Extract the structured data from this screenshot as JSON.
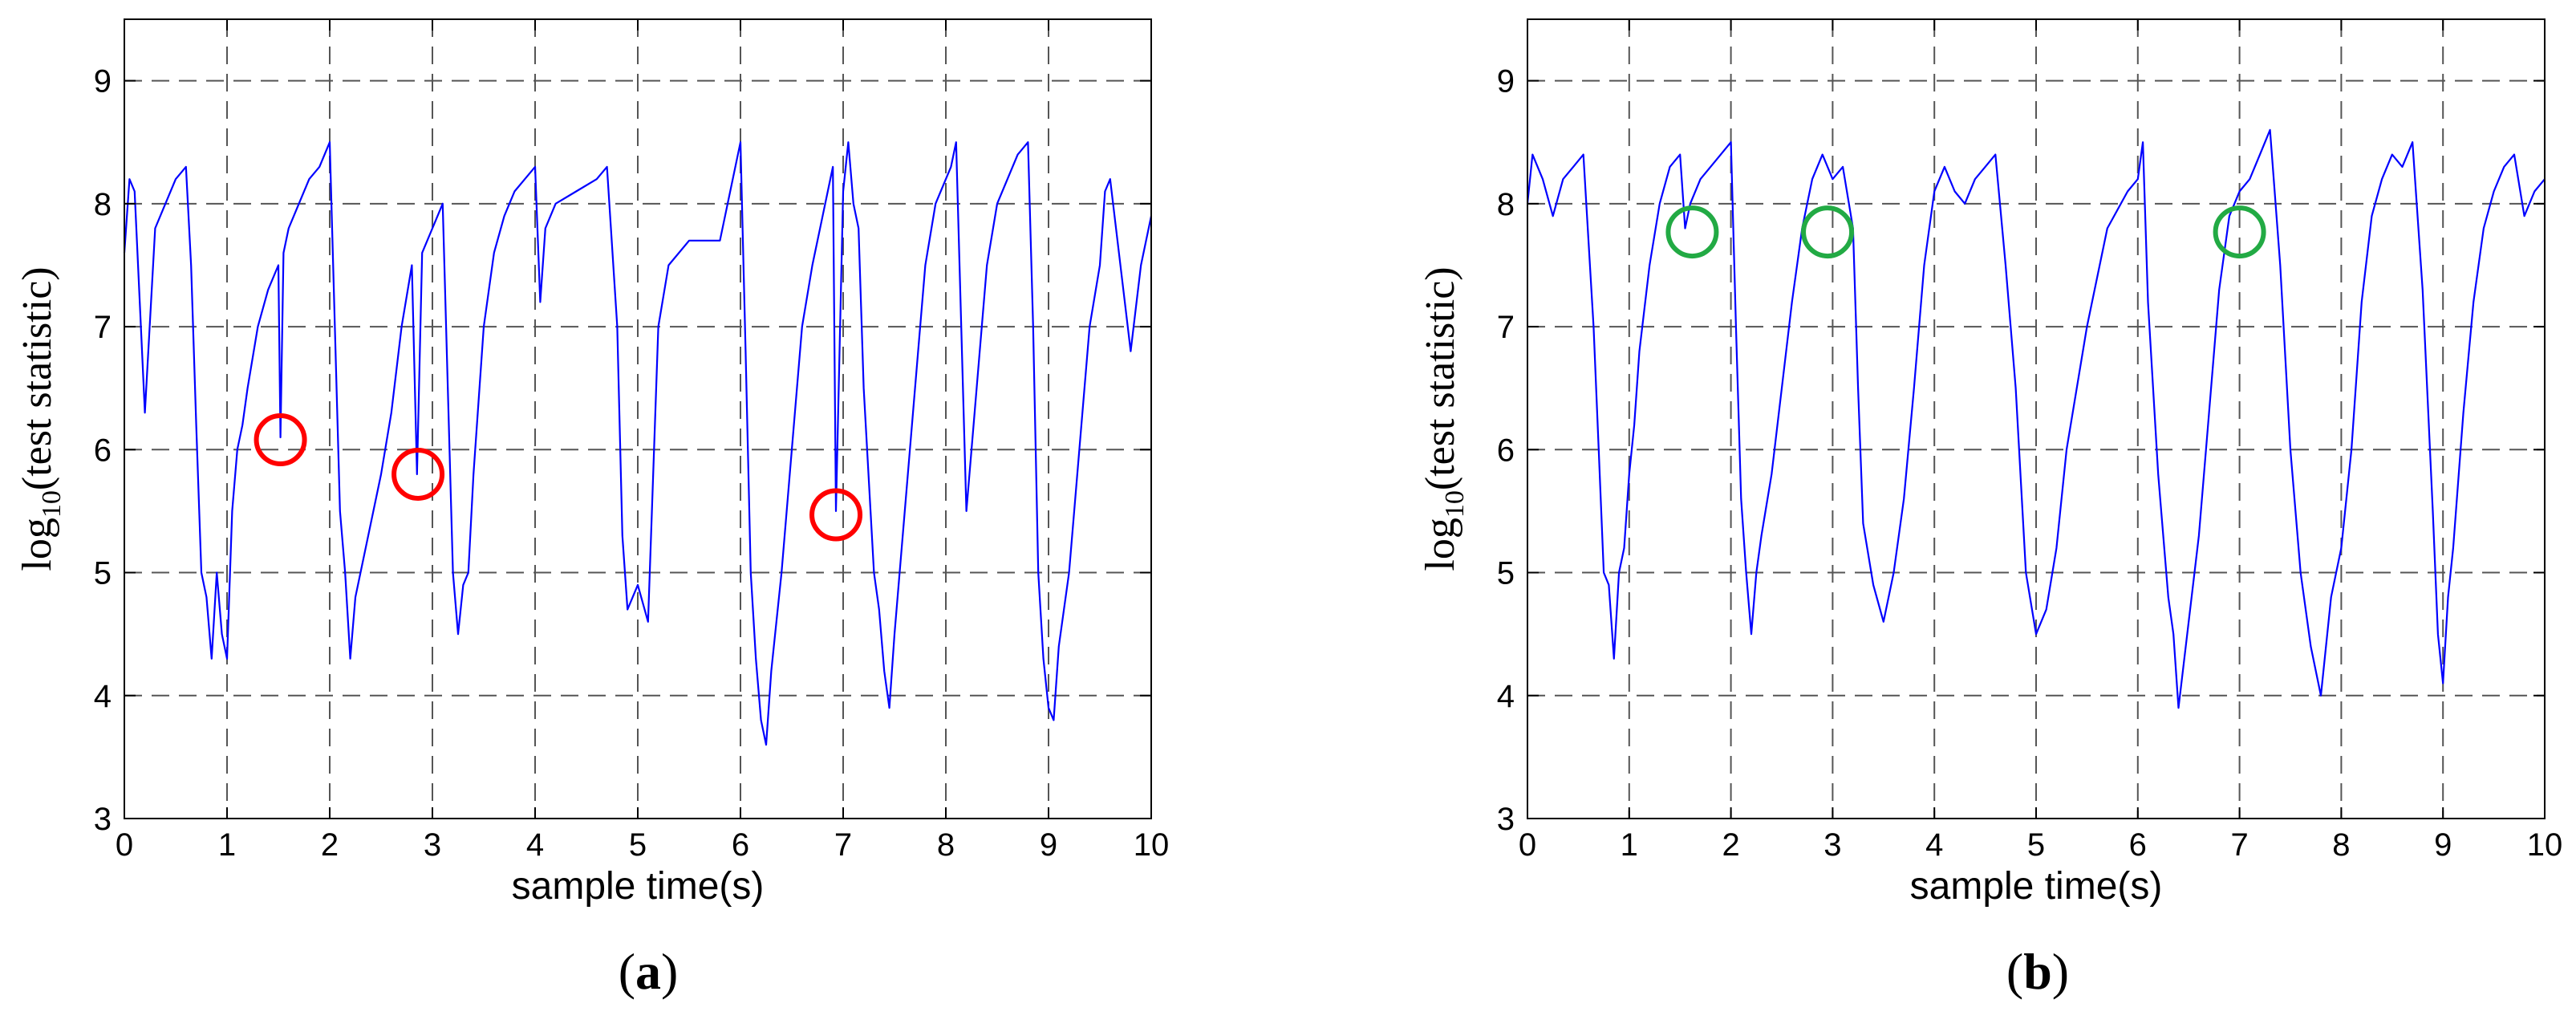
{
  "chart_data": [
    {
      "type": "line",
      "panel_label": {
        "open": "(",
        "letter": "a",
        "close": ")"
      },
      "xlabel": "sample time(s)",
      "ylabel": {
        "prefix": "log",
        "sub": "10",
        "suffix": "(test  statistic)"
      },
      "xlim": [
        0,
        10
      ],
      "ylim": [
        3,
        9.5
      ],
      "xticks": [
        0,
        1,
        2,
        3,
        4,
        5,
        6,
        7,
        8,
        9,
        10
      ],
      "yticks": [
        3,
        4,
        5,
        6,
        7,
        8,
        9
      ],
      "grid": true,
      "series_color": "#0000ff",
      "marker_color": "#ff0000",
      "series": [
        {
          "x": [
            0.0,
            0.05,
            0.1,
            0.15,
            0.2,
            0.3,
            0.4,
            0.5,
            0.6,
            0.65,
            0.7,
            0.75,
            0.8,
            0.85,
            0.9,
            0.95,
            1.0,
            1.05,
            1.1,
            1.15,
            1.2,
            1.3,
            1.4,
            1.5,
            1.52,
            1.55,
            1.6,
            1.7,
            1.8,
            1.9,
            2.0,
            2.05,
            2.1,
            2.15,
            2.2,
            2.25,
            2.3,
            2.4,
            2.5,
            2.6,
            2.7,
            2.8,
            2.85,
            2.9,
            3.0,
            3.05,
            3.1,
            3.15,
            3.2,
            3.25,
            3.3,
            3.35,
            3.4,
            3.5,
            3.6,
            3.7,
            3.8,
            3.9,
            4.0,
            4.05,
            4.1,
            4.2,
            4.4,
            4.6,
            4.7,
            4.8,
            4.85,
            4.9,
            5.0,
            5.1,
            5.15,
            5.2,
            5.3,
            5.5,
            5.7,
            5.8,
            6.0,
            6.05,
            6.1,
            6.15,
            6.2,
            6.25,
            6.3,
            6.35,
            6.4,
            6.5,
            6.6,
            6.7,
            6.8,
            6.9,
            6.93,
            7.0,
            7.05,
            7.1,
            7.15,
            7.2,
            7.3,
            7.35,
            7.4,
            7.45,
            7.5,
            7.6,
            7.7,
            7.8,
            7.9,
            8.0,
            8.05,
            8.1,
            8.15,
            8.2,
            8.3,
            8.4,
            8.5,
            8.6,
            8.7,
            8.8,
            8.85,
            8.9,
            8.95,
            9.0,
            9.05,
            9.1,
            9.2,
            9.3,
            9.4,
            9.5,
            9.55,
            9.6,
            9.7,
            9.8,
            9.9,
            10.0
          ],
          "y": [
            7.6,
            8.2,
            8.1,
            7.2,
            6.3,
            7.8,
            8.0,
            8.2,
            8.3,
            7.5,
            6.2,
            5.0,
            4.8,
            4.3,
            5.0,
            4.5,
            4.3,
            5.5,
            6.0,
            6.2,
            6.5,
            7.0,
            7.3,
            7.5,
            6.1,
            7.6,
            7.8,
            8.0,
            8.2,
            8.3,
            8.5,
            7.0,
            5.5,
            5.0,
            4.3,
            4.8,
            5.0,
            5.4,
            5.8,
            6.3,
            7.0,
            7.5,
            5.8,
            7.6,
            7.8,
            7.9,
            8.0,
            6.5,
            5.0,
            4.5,
            4.9,
            5.0,
            5.8,
            7.0,
            7.6,
            7.9,
            8.1,
            8.2,
            8.3,
            7.2,
            7.8,
            8.0,
            8.1,
            8.2,
            8.3,
            7.0,
            5.3,
            4.7,
            4.9,
            4.6,
            5.8,
            7.0,
            7.5,
            7.7,
            7.7,
            7.7,
            8.5,
            6.8,
            5.0,
            4.3,
            3.8,
            3.6,
            4.2,
            4.6,
            5.0,
            6.0,
            7.0,
            7.5,
            7.9,
            8.3,
            5.5,
            8.1,
            8.5,
            8.0,
            7.8,
            6.5,
            5.0,
            4.7,
            4.2,
            3.9,
            4.5,
            5.5,
            6.5,
            7.5,
            8.0,
            8.2,
            8.3,
            8.5,
            7.0,
            5.5,
            6.5,
            7.5,
            8.0,
            8.2,
            8.4,
            8.5,
            7.0,
            5.0,
            4.3,
            3.9,
            3.8,
            4.4,
            5.0,
            6.0,
            7.0,
            7.5,
            8.1,
            8.2,
            7.5,
            6.8,
            7.5,
            7.9
          ]
        }
      ],
      "markers": [
        {
          "x": 1.52,
          "y": 6.08
        },
        {
          "x": 2.86,
          "y": 5.8
        },
        {
          "x": 6.93,
          "y": 5.47
        }
      ]
    },
    {
      "type": "line",
      "panel_label": {
        "open": "(",
        "letter": "b",
        "close": ")"
      },
      "xlabel": "sample time(s)",
      "ylabel": {
        "prefix": "log",
        "sub": "10",
        "suffix": "(test  statistic)"
      },
      "xlim": [
        0,
        10
      ],
      "ylim": [
        3,
        9.5
      ],
      "xticks": [
        0,
        1,
        2,
        3,
        4,
        5,
        6,
        7,
        8,
        9,
        10
      ],
      "yticks": [
        3,
        4,
        5,
        6,
        7,
        8,
        9
      ],
      "grid": true,
      "series_color": "#0000ff",
      "marker_color": "#22aa44",
      "series": [
        {
          "x": [
            0.0,
            0.05,
            0.15,
            0.25,
            0.35,
            0.45,
            0.55,
            0.65,
            0.7,
            0.75,
            0.8,
            0.85,
            0.9,
            0.95,
            1.0,
            1.05,
            1.1,
            1.2,
            1.3,
            1.4,
            1.5,
            1.55,
            1.6,
            1.7,
            1.8,
            1.9,
            2.0,
            2.05,
            2.1,
            2.15,
            2.2,
            2.25,
            2.3,
            2.4,
            2.5,
            2.6,
            2.7,
            2.8,
            2.9,
            3.0,
            3.1,
            3.2,
            3.25,
            3.3,
            3.4,
            3.5,
            3.6,
            3.7,
            3.8,
            3.9,
            4.0,
            4.1,
            4.2,
            4.3,
            4.4,
            4.5,
            4.6,
            4.7,
            4.8,
            4.9,
            5.0,
            5.1,
            5.2,
            5.3,
            5.5,
            5.7,
            5.9,
            6.0,
            6.05,
            6.1,
            6.2,
            6.3,
            6.35,
            6.4,
            6.5,
            6.6,
            6.7,
            6.8,
            6.9,
            7.0,
            7.1,
            7.2,
            7.3,
            7.4,
            7.5,
            7.6,
            7.7,
            7.8,
            7.9,
            8.0,
            8.1,
            8.2,
            8.3,
            8.4,
            8.5,
            8.6,
            8.7,
            8.8,
            8.9,
            8.95,
            9.0,
            9.05,
            9.1,
            9.2,
            9.3,
            9.4,
            9.5,
            9.6,
            9.7,
            9.8,
            9.9,
            10.0
          ],
          "y": [
            8.0,
            8.4,
            8.2,
            7.9,
            8.2,
            8.3,
            8.4,
            7.0,
            6.0,
            5.0,
            4.9,
            4.3,
            5.0,
            5.2,
            5.8,
            6.2,
            6.8,
            7.5,
            8.0,
            8.3,
            8.4,
            7.8,
            8.0,
            8.2,
            8.3,
            8.4,
            8.5,
            7.0,
            5.6,
            5.0,
            4.5,
            5.0,
            5.3,
            5.8,
            6.5,
            7.2,
            7.8,
            8.2,
            8.4,
            8.2,
            8.3,
            7.8,
            6.5,
            5.4,
            4.9,
            4.6,
            5.0,
            5.6,
            6.5,
            7.5,
            8.1,
            8.3,
            8.1,
            8.0,
            8.2,
            8.3,
            8.4,
            7.5,
            6.5,
            5.0,
            4.5,
            4.7,
            5.2,
            6.0,
            7.0,
            7.8,
            8.1,
            8.2,
            8.5,
            7.2,
            5.8,
            4.8,
            4.5,
            3.9,
            4.6,
            5.3,
            6.3,
            7.3,
            7.9,
            8.1,
            8.2,
            8.4,
            8.6,
            7.5,
            6.0,
            5.0,
            4.4,
            4.0,
            4.8,
            5.2,
            6.0,
            7.2,
            7.9,
            8.2,
            8.4,
            8.3,
            8.5,
            7.3,
            5.5,
            4.5,
            4.1,
            4.8,
            5.2,
            6.3,
            7.2,
            7.8,
            8.1,
            8.3,
            8.4,
            7.9,
            8.1,
            8.2
          ]
        }
      ],
      "markers": [
        {
          "x": 1.62,
          "y": 7.77
        },
        {
          "x": 2.95,
          "y": 7.77
        },
        {
          "x": 7.0,
          "y": 7.77
        }
      ]
    }
  ]
}
